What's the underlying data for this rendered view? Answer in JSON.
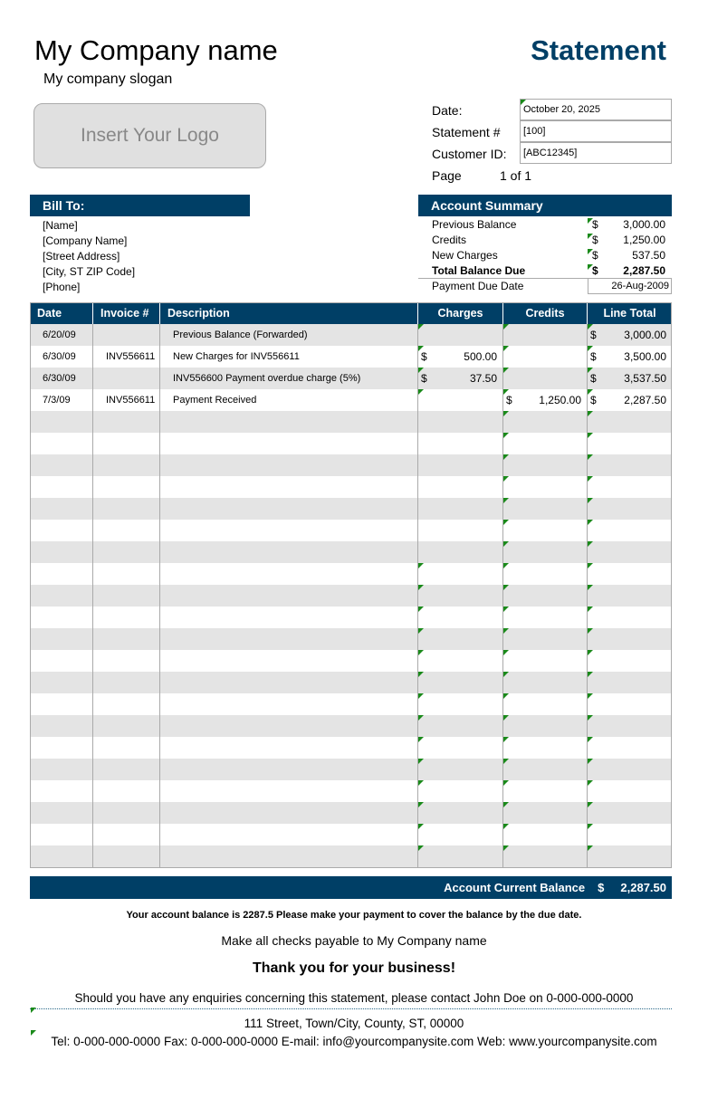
{
  "header": {
    "company": "My Company name",
    "slogan": "My company slogan",
    "title": "Statement",
    "logo": "Insert Your Logo"
  },
  "info": {
    "date_label": "Date:",
    "date": "October 20, 2025",
    "statement_label": "Statement #",
    "statement": "[100]",
    "customer_label": "Customer ID:",
    "customer": "[ABC12345]",
    "page_label": "Page",
    "page": "1 of 1"
  },
  "bill_to": {
    "title": "Bill To:",
    "lines": [
      "[Name]",
      "[Company Name]",
      "[Street Address]",
      "[City, ST  ZIP Code]",
      "[Phone]"
    ]
  },
  "summary": {
    "title": "Account Summary",
    "rows": [
      {
        "label": "Previous Balance",
        "cur": "$",
        "value": "3,000.00"
      },
      {
        "label": "Credits",
        "cur": "$",
        "value": "1,250.00"
      },
      {
        "label": "New Charges",
        "cur": "$",
        "value": "537.50"
      },
      {
        "label": "Total Balance Due",
        "cur": "$",
        "value": "2,287.50"
      }
    ],
    "due_label": "Payment Due Date",
    "due": "26-Aug-2009"
  },
  "table": {
    "headers": [
      "Date",
      "Invoice #",
      "Description",
      "Charges",
      "Credits",
      "Line Total"
    ],
    "rows": [
      {
        "date": "6/20/09",
        "invoice": "",
        "desc": "Previous Balance (Forwarded)",
        "charges": "",
        "credits": "",
        "total": "3,000.00"
      },
      {
        "date": "6/30/09",
        "invoice": "INV556611",
        "desc": "New Charges for INV556611",
        "charges": "500.00",
        "credits": "",
        "total": "3,500.00"
      },
      {
        "date": "6/30/09",
        "invoice": "",
        "desc": "INV556600 Payment overdue charge (5%)",
        "charges": "37.50",
        "credits": "",
        "total": "3,537.50"
      },
      {
        "date": "7/3/09",
        "invoice": "INV556611",
        "desc": "Payment Received",
        "charges": "",
        "credits": "1,250.00",
        "total": "2,287.50"
      }
    ],
    "empty_rows": 21,
    "currency": "$"
  },
  "balance": {
    "label": "Account Current Balance",
    "cur": "$",
    "value": "2,287.50"
  },
  "footer": {
    "note": "Your account balance is 2287.5 Please make your payment to cover the balance by the due date.",
    "checks": "Make all checks payable to My Company name",
    "thanks": "Thank you for your business!",
    "enquiries": "Should you have any enquiries concerning this statement, please contact John Doe on 0-000-000-0000",
    "address": "111 Street, Town/City, County, ST, 00000",
    "contact": "Tel: 0-000-000-0000 Fax: 0-000-000-0000 E-mail: info@yourcompanysite.com Web: www.yourcompanysite.com"
  }
}
